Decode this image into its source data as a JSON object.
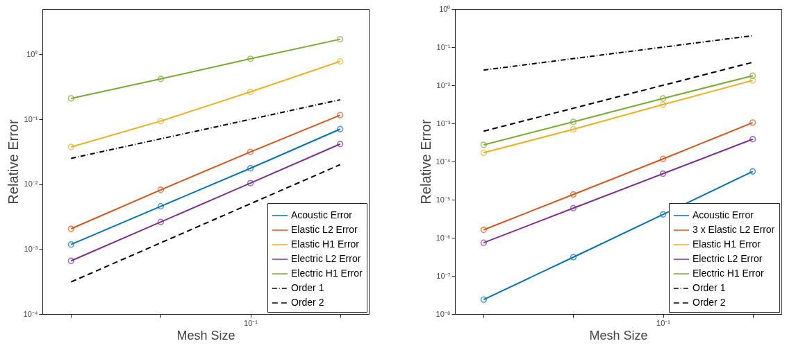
{
  "chart_data": [
    {
      "type": "line",
      "xlabel": "Mesh Size",
      "ylabel": "Relative Error",
      "log": "y",
      "legend": "bottom right",
      "ylim": [
        0.0001,
        5
      ],
      "yticks": [
        {
          "value": 0.0001,
          "label": "10⁻⁴"
        },
        {
          "value": 0.001,
          "label": "10⁻³"
        },
        {
          "value": 0.01,
          "label": "10⁻²"
        },
        {
          "value": 0.1,
          "label": "10⁻¹"
        },
        {
          "value": 1,
          "label": "10⁰"
        }
      ],
      "categories": [
        null,
        null,
        "10⁻¹",
        null
      ],
      "series": [
        {
          "name": "Acoustic Error",
          "color": "#0072bd",
          "marker": "circle",
          "line_style": "solid",
          "values": [
            0.00118,
            0.00457,
            0.0176,
            0.0706
          ]
        },
        {
          "name": "Elastic L2 Error",
          "color": "#d95319",
          "marker": "circle",
          "line_style": "solid",
          "values": [
            0.00206,
            0.0082,
            0.0315,
            0.116
          ]
        },
        {
          "name": "Elastic H1 Error",
          "color": "#edb120",
          "marker": "circle",
          "line_style": "solid",
          "values": [
            0.0375,
            0.094,
            0.265,
            0.78
          ]
        },
        {
          "name": "Electric L2 Error",
          "color": "#7e2f8e",
          "marker": "circle",
          "line_style": "solid",
          "values": [
            0.00066,
            0.00262,
            0.0104,
            0.0416
          ]
        },
        {
          "name": " Electric H1 Error",
          "color": "#77ac30",
          "marker": "circle",
          "line_style": "solid",
          "values": [
            0.21,
            0.42,
            0.855,
            1.71
          ]
        },
        {
          "name": "Order 1",
          "color": "#000000",
          "marker": "none",
          "line_style": "dashdot",
          "values": [
            0.025,
            0.05,
            0.1,
            0.2
          ]
        },
        {
          "name": "Order 2",
          "color": "#000000",
          "marker": "none",
          "line_style": "dashed",
          "values": [
            0.0003125,
            0.00125,
            0.005,
            0.02
          ]
        }
      ]
    },
    {
      "type": "line",
      "xlabel": "Mesh Size",
      "ylabel": "Relative Error",
      "log": "y",
      "legend": "bottom right",
      "ylim": [
        1e-08,
        1
      ],
      "yticks": [
        {
          "value": 1e-08,
          "label": "10⁻⁸"
        },
        {
          "value": 1e-07,
          "label": "10⁻⁷"
        },
        {
          "value": 1e-06,
          "label": "10⁻⁶"
        },
        {
          "value": 1e-05,
          "label": "10⁻⁵"
        },
        {
          "value": 0.0001,
          "label": "10⁻⁴"
        },
        {
          "value": 0.001,
          "label": "10⁻³"
        },
        {
          "value": 0.01,
          "label": "10⁻²"
        },
        {
          "value": 0.1,
          "label": "10⁻¹"
        },
        {
          "value": 1,
          "label": "10⁰"
        }
      ],
      "categories": [
        null,
        null,
        "10⁻¹",
        null
      ],
      "series": [
        {
          "name": "Acoustic Error",
          "color": "#0072bd",
          "marker": "circle",
          "line_style": "solid",
          "values": [
            2.4e-08,
            3.1e-07,
            4.1e-06,
            5.5e-05
          ]
        },
        {
          "name": "3 x Elastic L2 Error",
          "color": "#d95319",
          "marker": "circle",
          "line_style": "solid",
          "values": [
            1.62e-06,
            1.37e-05,
            0.000117,
            0.00105
          ]
        },
        {
          "name": "Elastic H1 Error",
          "color": "#edb120",
          "marker": "circle",
          "line_style": "solid",
          "values": [
            0.00017,
            0.0007,
            0.00312,
            0.0134
          ]
        },
        {
          "name": "Electric L2 Error",
          "color": "#7e2f8e",
          "marker": "circle",
          "line_style": "solid",
          "values": [
            7.4e-07,
            6e-06,
            4.8e-05,
            0.000386
          ]
        },
        {
          "name": " Electric H1 Error",
          "color": "#77ac30",
          "marker": "circle",
          "line_style": "solid",
          "values": [
            0.000274,
            0.0011,
            0.00452,
            0.0178
          ]
        },
        {
          "name": "Order 1",
          "color": "#000000",
          "marker": "none",
          "line_style": "dashdot",
          "values": [
            0.025,
            0.05,
            0.1,
            0.2
          ]
        },
        {
          "name": "Order 2",
          "color": "#000000",
          "marker": "none",
          "line_style": "dashed",
          "values": [
            0.000625,
            0.0025,
            0.01,
            0.04
          ]
        }
      ]
    }
  ]
}
